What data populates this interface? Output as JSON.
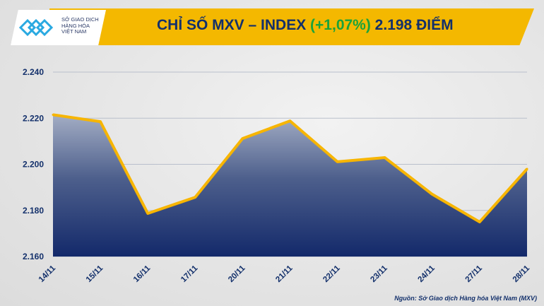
{
  "logo": {
    "lines": [
      "SỞ GIAO DỊCH",
      "HÀNG HÓA",
      "VIỆT NAM"
    ]
  },
  "header": {
    "title_prefix": "CHỈ SỐ MXV – INDEX ",
    "change": "(+1,07%)",
    "title_suffix": " 2.198 ĐIỂM"
  },
  "colors": {
    "banner": "#f4b800",
    "title": "#13306b",
    "change": "#1aa33a",
    "line": "#f7b500",
    "fill_top": "#9aa6bf",
    "fill_bottom": "#13296a"
  },
  "chart_data": {
    "type": "area",
    "title": "CHỈ SỐ MXV – INDEX (+1,07%) 2.198 ĐIỂM",
    "categories": [
      "14/11",
      "15/11",
      "16/11",
      "17/11",
      "20/11",
      "21/11",
      "22/11",
      "23/11",
      "24/11",
      "27/11",
      "28/11"
    ],
    "values": [
      2221.5,
      2218.5,
      2178.7,
      2185.7,
      2211.2,
      2218.8,
      2201.1,
      2202.9,
      2187.0,
      2175.0,
      2198.0
    ],
    "yticks": [
      2160,
      2180,
      2200,
      2220,
      2240
    ],
    "ytick_labels": [
      "2.160",
      "2.180",
      "2.200",
      "2.220",
      "2.240"
    ],
    "ylim": [
      2160,
      2240
    ],
    "grid": true,
    "xlabel": "",
    "ylabel": ""
  },
  "source": "Nguồn: Sở Giao dịch Hàng hóa Việt Nam (MXV)"
}
